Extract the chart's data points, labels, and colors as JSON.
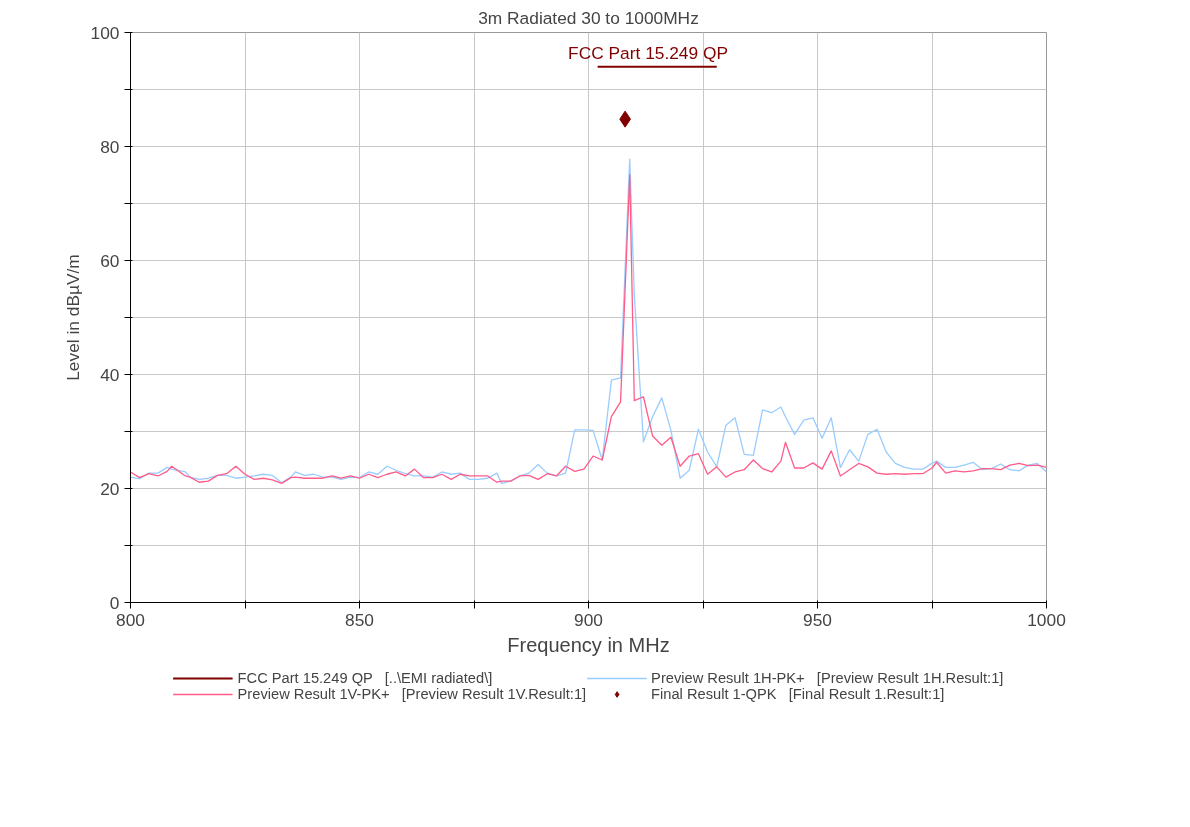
{
  "chart_data": {
    "type": "line",
    "title": "3m Radiated 30 to 1000MHz",
    "xlabel": "Frequency in MHz",
    "ylabel": "Level in dBµV/m",
    "xlim": [
      800,
      1000
    ],
    "ylim": [
      0,
      100
    ],
    "xticks": [
      800,
      {
        "value": 825,
        "label": null
      },
      850,
      {
        "value": 875,
        "label": null
      },
      900,
      {
        "value": 925,
        "label": null
      },
      950,
      {
        "value": 975,
        "label": null
      },
      1000
    ],
    "yticks": [
      0,
      {
        "value": 10,
        "label": null
      },
      20,
      {
        "value": 30,
        "label": null
      },
      40,
      {
        "value": 50,
        "label": null
      },
      60,
      {
        "value": 70,
        "label": null
      },
      80,
      {
        "value": 90,
        "label": null
      },
      100
    ],
    "grid": true,
    "legend": "bottom",
    "line_style": "solid",
    "annotations": [
      {
        "text": "FCC Part 15.249 QP",
        "x": 913,
        "y": 94
      }
    ],
    "series": [
      {
        "name": "FCC Part 15.249 QP   [..\\EMI radiated\\]",
        "color": "#800000",
        "x": [
          902,
          928
        ],
        "values": [
          94,
          94
        ]
      },
      {
        "name": "Preview Result 1V-PK+   [Preview Result 1V.Result:1]",
        "color": "#ff5c8a",
        "x": [
          800,
          802,
          804,
          806,
          808,
          809,
          812,
          813,
          815,
          817,
          819,
          821,
          823,
          825,
          827,
          829,
          831,
          833,
          835,
          836,
          838,
          840,
          842,
          844,
          846,
          848,
          850,
          852,
          854,
          856,
          858,
          860,
          862,
          864,
          866,
          868,
          870,
          872,
          874,
          876,
          878,
          880,
          881,
          883,
          885,
          887,
          889,
          891,
          893,
          895,
          897,
          899,
          901,
          903,
          905,
          907,
          909,
          910,
          912,
          914,
          916,
          918,
          920,
          922,
          924,
          926,
          928,
          930,
          932,
          934,
          936,
          938,
          940,
          942,
          943,
          945,
          947,
          949,
          951,
          953,
          955,
          957,
          959,
          961,
          963,
          965,
          967,
          969,
          971,
          973,
          975,
          976,
          978,
          980,
          982,
          984,
          986,
          988,
          990,
          992,
          994,
          996,
          998,
          1000
        ],
        "values": [
          22.9,
          21.9,
          22.6,
          22.2,
          23.0,
          23.9,
          22.2,
          22.0,
          21.1,
          21.3,
          22.3,
          22.6,
          23.9,
          22.5,
          21.6,
          21.8,
          21.5,
          20.9,
          21.9,
          22.0,
          21.8,
          21.8,
          21.8,
          22.2,
          21.8,
          22.2,
          21.8,
          22.5,
          21.9,
          22.5,
          22.9,
          22.2,
          23.4,
          21.9,
          21.9,
          22.5,
          21.6,
          22.5,
          22.2,
          22.2,
          22.2,
          21.1,
          21.3,
          21.3,
          22.2,
          22.3,
          21.6,
          22.6,
          22.2,
          23.9,
          23.0,
          23.4,
          25.7,
          25.0,
          32.6,
          35.2,
          75,
          35.4,
          36.1,
          29.2,
          27.6,
          29.0,
          23.9,
          25.7,
          26.1,
          22.5,
          23.8,
          22.0,
          22.9,
          23.3,
          25.0,
          23.5,
          22.9,
          24.8,
          28.1,
          23.6,
          23.6,
          24.5,
          23.4,
          26.6,
          22.2,
          23.3,
          24.4,
          23.8,
          22.7,
          22.5,
          22.6,
          22.5,
          22.6,
          22.6,
          23.6,
          24.6,
          22.7,
          23.1,
          22.9,
          23.1,
          23.5,
          23.5,
          23.3,
          24.1,
          24.4,
          24.0,
          24.1,
          23.7
        ]
      },
      {
        "name": "Preview Result 1H-PK+   [Preview Result 1H.Result:1]",
        "color": "#99ccff",
        "x": [
          800,
          802,
          804,
          806,
          808,
          809,
          812,
          813,
          815,
          817,
          819,
          821,
          823,
          825,
          827,
          829,
          831,
          833,
          835,
          836,
          838,
          840,
          842,
          844,
          846,
          848,
          850,
          852,
          854,
          856,
          858,
          860,
          862,
          864,
          866,
          868,
          870,
          872,
          874,
          876,
          878,
          880,
          881,
          883,
          885,
          887,
          889,
          891,
          893,
          895,
          897,
          899,
          901,
          903,
          905,
          907,
          909,
          910,
          912,
          914,
          916,
          918,
          920,
          922,
          924,
          926,
          928,
          930,
          932,
          934,
          936,
          938,
          940,
          942,
          943,
          945,
          947,
          949,
          951,
          953,
          955,
          957,
          959,
          961,
          963,
          965,
          967,
          969,
          971,
          973,
          975,
          976,
          978,
          980,
          982,
          984,
          986,
          988,
          990,
          992,
          994,
          996,
          998,
          1000
        ],
        "values": [
          22.0,
          21.7,
          22.7,
          22.7,
          23.7,
          23.4,
          22.9,
          22.0,
          21.6,
          21.8,
          22.3,
          22.3,
          21.8,
          22.0,
          22.2,
          22.5,
          22.3,
          21.0,
          22.0,
          22.9,
          22.3,
          22.5,
          22.0,
          22.0,
          21.6,
          22.0,
          21.9,
          22.9,
          22.5,
          23.9,
          23.2,
          22.6,
          22.2,
          22.2,
          22.0,
          22.9,
          22.5,
          22.7,
          21.6,
          21.6,
          21.8,
          22.7,
          20.9,
          21.3,
          22.2,
          22.7,
          24.2,
          22.7,
          22.2,
          22.7,
          30.3,
          30.3,
          30.2,
          25.0,
          39.0,
          39.4,
          77.8,
          54,
          28.2,
          32.6,
          35.9,
          30.2,
          21.8,
          23.2,
          30.4,
          26.4,
          23.8,
          31.1,
          32.4,
          26.0,
          25.8,
          33.8,
          33.3,
          34.3,
          32.6,
          29.5,
          32.0,
          32.4,
          28.8,
          32.4,
          23.7,
          26.8,
          24.8,
          29.5,
          30.4,
          26.4,
          24.4,
          23.7,
          23.4,
          23.4,
          24.4,
          24.8,
          23.7,
          23.7,
          24.1,
          24.6,
          23.3,
          23.5,
          24.3,
          23.3,
          23.1,
          24.1,
          24.4,
          22.9
        ]
      },
      {
        "name": "Final Result 1-QPK   [Final Result 1.Result:1]",
        "type": "scatter",
        "marker": "diamond",
        "color": "#800000",
        "x": [
          908
        ],
        "values": [
          84.8
        ]
      }
    ]
  }
}
